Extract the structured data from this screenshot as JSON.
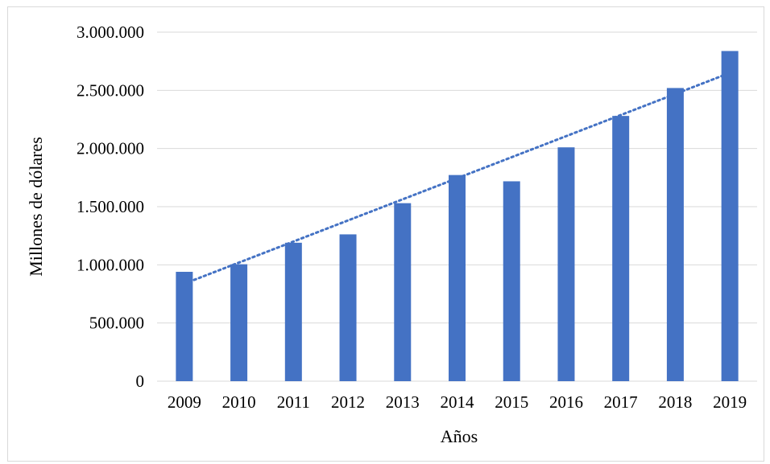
{
  "chart_data": {
    "type": "bar",
    "categories": [
      "2009",
      "2010",
      "2011",
      "2012",
      "2013",
      "2014",
      "2015",
      "2016",
      "2017",
      "2018",
      "2019"
    ],
    "series": [
      {
        "values": [
          940000,
          1005000,
          1190000,
          1262000,
          1530000,
          1772000,
          1718000,
          2010000,
          2280000,
          2520000,
          2838000
        ],
        "color": "#4472c4"
      }
    ],
    "trendline": {
      "type": "linear",
      "style": "dotted",
      "color": "#4472c4",
      "start_value": 838000,
      "end_value": 2650000
    },
    "title": "",
    "xlabel": "Años",
    "ylabel": "Millones de dólares",
    "ylim": [
      0,
      3000000
    ],
    "yticks": [
      0,
      500000,
      1000000,
      1500000,
      2000000,
      2500000,
      3000000
    ],
    "ytick_labels": [
      "0",
      "500.000",
      "1.000.000",
      "1.500.000",
      "2.000.000",
      "2.500.000",
      "3.000.000"
    ],
    "grid": true,
    "legend": "none"
  }
}
